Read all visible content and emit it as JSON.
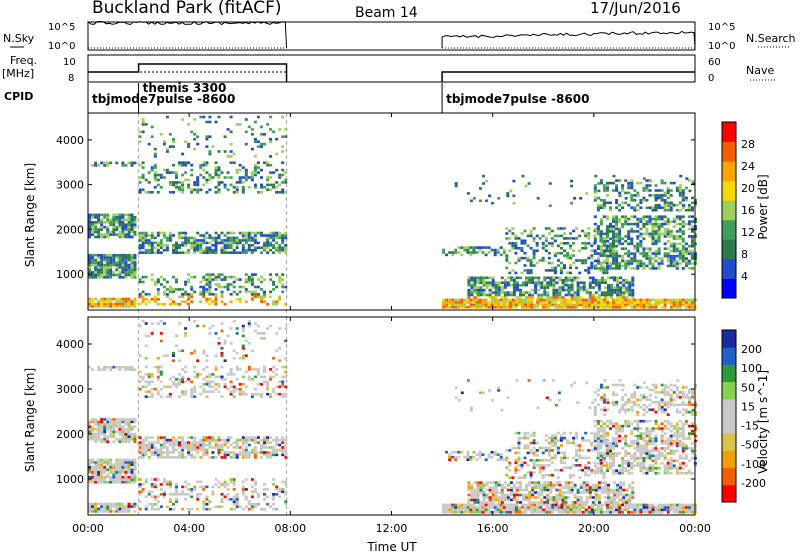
{
  "header": {
    "title": "Buckland Park (fitACF)",
    "beam": "Beam 14",
    "date": "17/Jun/2016"
  },
  "colors": {
    "power": [
      "#0000ff",
      "#224ccc",
      "#2e7a4a",
      "#3f9f5a",
      "#9ecf5a",
      "#f5d800",
      "#f7a600",
      "#f06000",
      "#ff0000"
    ],
    "velocity": [
      "#ff0000",
      "#f06000",
      "#f0a000",
      "#d8c34a",
      "#c8c8c8",
      "#c8c8c8",
      "#88d050",
      "#2e9a3a",
      "#2060c8",
      "#1a2aa0"
    ]
  },
  "chart_data": [
    {
      "type": "line",
      "name": "N.Sky / N.Search panel",
      "left_labels": {
        "label": "N.Sky",
        "ticks": [
          "10^5",
          "10^0"
        ]
      },
      "right_labels": {
        "label": "N.Search",
        "ticks": [
          "10^5",
          "10^0"
        ]
      },
      "segments_hours": [
        [
          0,
          7.85
        ],
        [
          14.0,
          24.0
        ]
      ]
    },
    {
      "type": "line",
      "name": "Frequency / Nave panel",
      "left_labels": {
        "label": "Freq.",
        "unit": "[MHz]",
        "ticks": [
          "10",
          "8"
        ]
      },
      "right_labels": {
        "label": "Nave",
        "ticks": [
          "60",
          "0"
        ]
      },
      "cpid_label": "CPID",
      "modes": [
        {
          "name": "tbjmode7pulse -8600",
          "start_hour": 0
        },
        {
          "name": "themis 3300",
          "start_hour": 2.0
        },
        {
          "name": "tbjmode7pulse -8600",
          "start_hour": 14.0
        }
      ]
    },
    {
      "type": "heatmap",
      "name": "power",
      "xlabel": "Time UT",
      "ylabel": "Slant Range [km]",
      "colorbar_label": "Power [dB]",
      "colorbar_ticks": [
        "4",
        "8",
        "12",
        "16",
        "20",
        "24",
        "28"
      ],
      "xlim_hours": [
        0,
        24
      ],
      "ylim_km": [
        200,
        4600
      ],
      "ytick_labels": [
        "1000",
        "2000",
        "3000",
        "4000"
      ],
      "xtick_labels": [
        "00:00",
        "04:00",
        "08:00",
        "12:00",
        "16:00",
        "20:00",
        "00:00"
      ]
    },
    {
      "type": "heatmap",
      "name": "velocity",
      "xlabel": "Time UT",
      "ylabel": "Slant Range [km]",
      "colorbar_label": "Velocity [m s^-1]",
      "colorbar_ticks": [
        "200",
        "100",
        "50",
        "15",
        "-15",
        "-50",
        "-100",
        "-200"
      ],
      "xlim_hours": [
        0,
        24
      ],
      "ylim_km": [
        200,
        4600
      ],
      "ytick_labels": [
        "1000",
        "2000",
        "3000",
        "4000"
      ],
      "xtick_labels": [
        "00:00",
        "04:00",
        "08:00",
        "12:00",
        "16:00",
        "20:00",
        "00:00"
      ]
    }
  ]
}
